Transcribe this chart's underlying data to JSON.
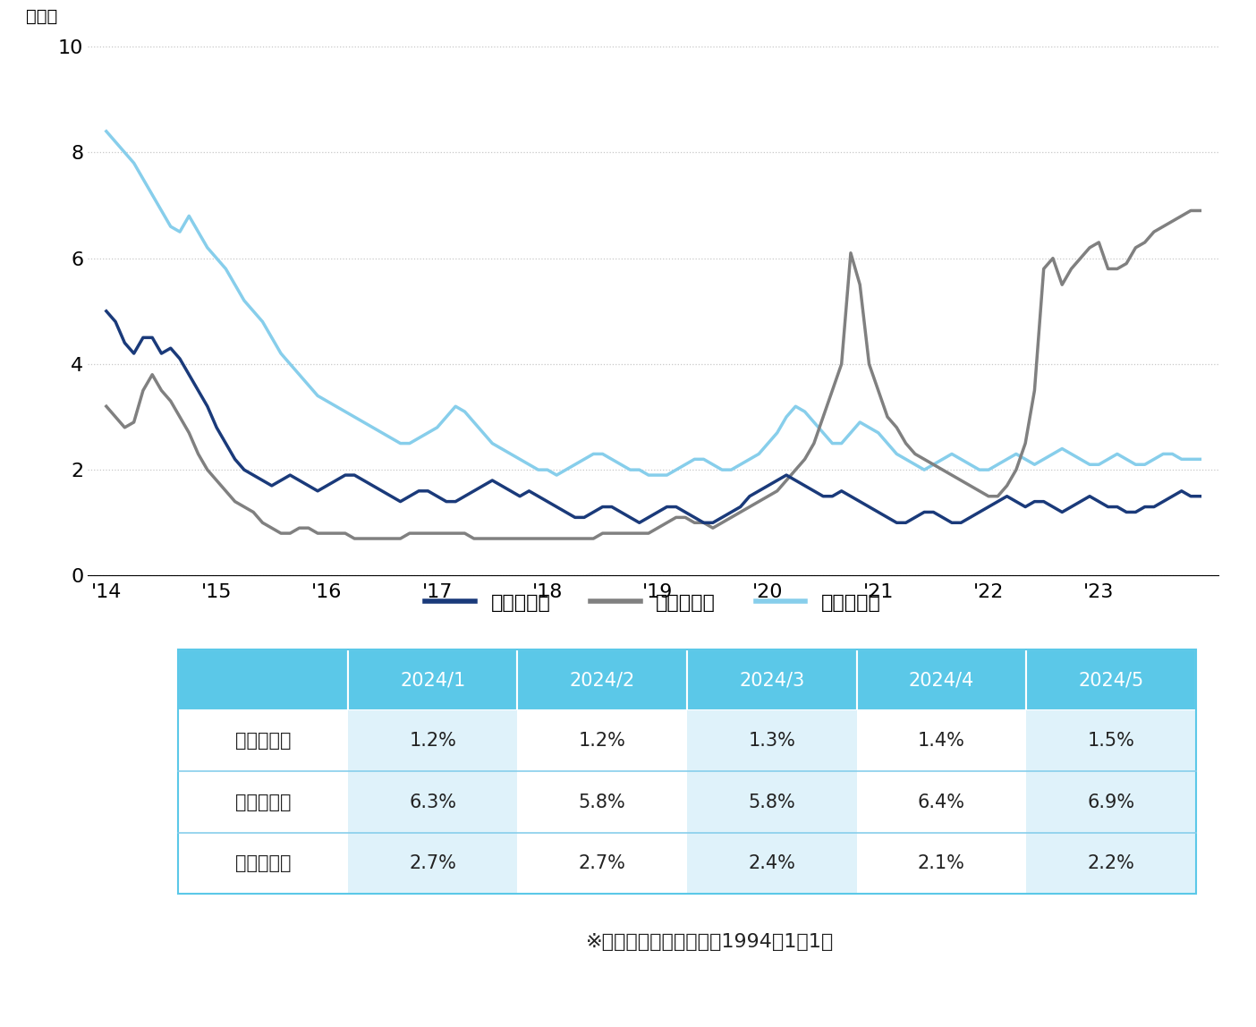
{
  "title": "",
  "ylabel_text": "（％）",
  "yticks": [
    0,
    2,
    4,
    6,
    8,
    10
  ],
  "ylim": [
    0,
    10.3
  ],
  "xtick_labels": [
    "'14",
    "'15",
    "'16",
    "'17",
    "'18",
    "'19",
    "'20",
    "'21",
    "'22",
    "'23"
  ],
  "line_colors": {
    "minami": "#1a3a7a",
    "kita": "#808080",
    "odori": "#87ceeb"
  },
  "line_widths": {
    "minami": 2.5,
    "kita": 2.5,
    "odori": 2.5
  },
  "legend_labels": [
    "南口エリア",
    "北口エリア",
    "大通エリア"
  ],
  "background_color": "#ffffff",
  "grid_color": "#c8c8c8",
  "table_header_bg": "#5bc8e8",
  "table_header_text": "#ffffff",
  "table_row_labels": [
    "南口エリア",
    "北口エリア",
    "大通エリア"
  ],
  "table_columns": [
    "2024/1",
    "2024/2",
    "2024/3",
    "2024/4",
    "2024/5"
  ],
  "table_data": [
    [
      "1.2%",
      "1.2%",
      "1.3%",
      "1.4%",
      "1.5%"
    ],
    [
      "6.3%",
      "5.8%",
      "5.8%",
      "6.4%",
      "6.9%"
    ],
    [
      "2.7%",
      "2.7%",
      "2.4%",
      "2.1%",
      "2.2%"
    ]
  ],
  "footnote": "※統　計　開　始　日：1994年1月1日",
  "minami_data": [
    5.0,
    4.8,
    4.4,
    4.2,
    4.5,
    4.5,
    4.2,
    4.3,
    4.1,
    3.8,
    3.5,
    3.2,
    2.8,
    2.5,
    2.2,
    2.0,
    1.9,
    1.8,
    1.7,
    1.8,
    1.9,
    1.8,
    1.7,
    1.6,
    1.7,
    1.8,
    1.9,
    1.9,
    1.8,
    1.7,
    1.6,
    1.5,
    1.4,
    1.5,
    1.6,
    1.6,
    1.5,
    1.4,
    1.4,
    1.5,
    1.6,
    1.7,
    1.8,
    1.7,
    1.6,
    1.5,
    1.6,
    1.5,
    1.4,
    1.3,
    1.2,
    1.1,
    1.1,
    1.2,
    1.3,
    1.3,
    1.2,
    1.1,
    1.0,
    1.1,
    1.2,
    1.3,
    1.3,
    1.2,
    1.1,
    1.0,
    1.0,
    1.1,
    1.2,
    1.3,
    1.5,
    1.6,
    1.7,
    1.8,
    1.9,
    1.8,
    1.7,
    1.6,
    1.5,
    1.5,
    1.6,
    1.5,
    1.4,
    1.3,
    1.2,
    1.1,
    1.0,
    1.0,
    1.1,
    1.2,
    1.2,
    1.1,
    1.0,
    1.0,
    1.1,
    1.2,
    1.3,
    1.4,
    1.5,
    1.4,
    1.3,
    1.4,
    1.4,
    1.3,
    1.2,
    1.3,
    1.4,
    1.5,
    1.4,
    1.3,
    1.3,
    1.2,
    1.2,
    1.3,
    1.3,
    1.4,
    1.5,
    1.6,
    1.5,
    1.5
  ],
  "kita_data": [
    3.2,
    3.0,
    2.8,
    2.9,
    3.5,
    3.8,
    3.5,
    3.3,
    3.0,
    2.7,
    2.3,
    2.0,
    1.8,
    1.6,
    1.4,
    1.3,
    1.2,
    1.0,
    0.9,
    0.8,
    0.8,
    0.9,
    0.9,
    0.8,
    0.8,
    0.8,
    0.8,
    0.7,
    0.7,
    0.7,
    0.7,
    0.7,
    0.7,
    0.8,
    0.8,
    0.8,
    0.8,
    0.8,
    0.8,
    0.8,
    0.7,
    0.7,
    0.7,
    0.7,
    0.7,
    0.7,
    0.7,
    0.7,
    0.7,
    0.7,
    0.7,
    0.7,
    0.7,
    0.7,
    0.8,
    0.8,
    0.8,
    0.8,
    0.8,
    0.8,
    0.9,
    1.0,
    1.1,
    1.1,
    1.0,
    1.0,
    0.9,
    1.0,
    1.1,
    1.2,
    1.3,
    1.4,
    1.5,
    1.6,
    1.8,
    2.0,
    2.2,
    2.5,
    3.0,
    3.5,
    4.0,
    6.1,
    5.5,
    4.0,
    3.5,
    3.0,
    2.8,
    2.5,
    2.3,
    2.2,
    2.1,
    2.0,
    1.9,
    1.8,
    1.7,
    1.6,
    1.5,
    1.5,
    1.7,
    2.0,
    2.5,
    3.5,
    5.8,
    6.0,
    5.5,
    5.8,
    6.0,
    6.2,
    6.3,
    5.8,
    5.8,
    5.9,
    6.2,
    6.3,
    6.5,
    6.6,
    6.7,
    6.8,
    6.9,
    6.9
  ],
  "odori_data": [
    8.4,
    8.2,
    8.0,
    7.8,
    7.5,
    7.2,
    6.9,
    6.6,
    6.5,
    6.8,
    6.5,
    6.2,
    6.0,
    5.8,
    5.5,
    5.2,
    5.0,
    4.8,
    4.5,
    4.2,
    4.0,
    3.8,
    3.6,
    3.4,
    3.3,
    3.2,
    3.1,
    3.0,
    2.9,
    2.8,
    2.7,
    2.6,
    2.5,
    2.5,
    2.6,
    2.7,
    2.8,
    3.0,
    3.2,
    3.1,
    2.9,
    2.7,
    2.5,
    2.4,
    2.3,
    2.2,
    2.1,
    2.0,
    2.0,
    1.9,
    2.0,
    2.1,
    2.2,
    2.3,
    2.3,
    2.2,
    2.1,
    2.0,
    2.0,
    1.9,
    1.9,
    1.9,
    2.0,
    2.1,
    2.2,
    2.2,
    2.1,
    2.0,
    2.0,
    2.1,
    2.2,
    2.3,
    2.5,
    2.7,
    3.0,
    3.2,
    3.1,
    2.9,
    2.7,
    2.5,
    2.5,
    2.7,
    2.9,
    2.8,
    2.7,
    2.5,
    2.3,
    2.2,
    2.1,
    2.0,
    2.1,
    2.2,
    2.3,
    2.2,
    2.1,
    2.0,
    2.0,
    2.1,
    2.2,
    2.3,
    2.2,
    2.1,
    2.2,
    2.3,
    2.4,
    2.3,
    2.2,
    2.1,
    2.1,
    2.2,
    2.3,
    2.2,
    2.1,
    2.1,
    2.2,
    2.3,
    2.3,
    2.2,
    2.2,
    2.2
  ]
}
